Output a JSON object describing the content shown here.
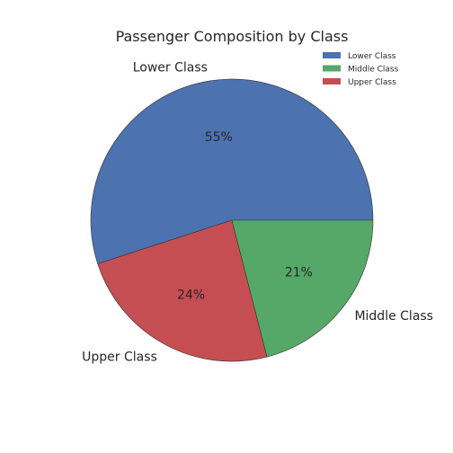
{
  "chart_data": {
    "type": "pie",
    "title": "Passenger Composition by Class",
    "slices": [
      {
        "label": "Lower Class",
        "value": 55,
        "pct_label": "55%",
        "color": "#4c72b0"
      },
      {
        "label": "Upper Class",
        "value": 24,
        "pct_label": "24%",
        "color": "#c44e52"
      },
      {
        "label": "Middle Class",
        "value": 21,
        "pct_label": "21%",
        "color": "#55a868"
      }
    ],
    "legend": {
      "placement": "top-right",
      "entries": [
        {
          "label": "Lower Class",
          "color": "#4c72b0"
        },
        {
          "label": "Middle Class",
          "color": "#55a868"
        },
        {
          "label": "Upper Class",
          "color": "#c44e52"
        }
      ]
    },
    "start_angle_deg": 0,
    "direction": "counterclockwise"
  }
}
